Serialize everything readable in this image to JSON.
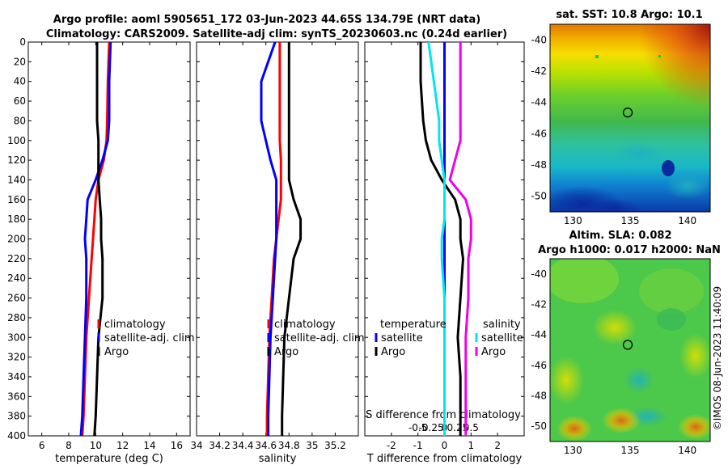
{
  "header": {
    "title_line1": "Argo profile: aoml 5905651_172 03-Jun-2023 44.65S 134.79E (NRT data)",
    "title_line2": "Climatology: CARS2009. Satellite-adj clim: synTS_20230603.nc (0.24d earlier)"
  },
  "map_sst": {
    "title": "sat. SST: 10.8 Argo: 10.1"
  },
  "map_sla": {
    "title_line1": "Altim. SLA: 0.082",
    "title_line2": "Argo h1000: 0.017 h2000: NaN"
  },
  "credit": "©IMOS 08-Jun-2023 11:40:09",
  "colors": {
    "climatology": "#ff0000",
    "satellite": "#0000ff",
    "argo": "#000000",
    "sal_satellite": "#00e5ee",
    "sal_argo": "#ee00ee"
  },
  "chart_data": [
    {
      "type": "line",
      "name": "temperature-panel",
      "xlabel": "temperature (deg C)",
      "xlim": [
        5,
        17
      ],
      "xticks": [
        6,
        8,
        10,
        12,
        14,
        16
      ],
      "ylim": [
        0,
        400
      ],
      "yticks": [
        0,
        20,
        40,
        60,
        80,
        100,
        120,
        140,
        160,
        180,
        200,
        220,
        240,
        260,
        280,
        300,
        320,
        340,
        360,
        380,
        400
      ],
      "depth": [
        0,
        40,
        80,
        100,
        120,
        140,
        160,
        180,
        200,
        220,
        260,
        300,
        340,
        380,
        400
      ],
      "legend": [
        "climatology",
        "satellite-adj. clim",
        "Argo"
      ],
      "series": [
        {
          "name": "climatology",
          "values": [
            11,
            10.9,
            10.85,
            10.8,
            10.6,
            10.2,
            10.0,
            9.9,
            9.8,
            9.7,
            9.5,
            9.3,
            9.2,
            9.1,
            9.0
          ]
        },
        {
          "name": "satellite-adj. clim",
          "values": [
            11.1,
            11.0,
            11.0,
            10.9,
            10.5,
            10.0,
            9.4,
            9.3,
            9.2,
            9.3,
            9.3,
            9.2,
            9.1,
            9.0,
            8.9
          ]
        },
        {
          "name": "Argo",
          "values": [
            10.1,
            10.1,
            10.1,
            10.2,
            10.2,
            10.2,
            10.3,
            10.4,
            10.4,
            10.5,
            10.5,
            10.2,
            10.1,
            10.0,
            9.9
          ]
        }
      ]
    },
    {
      "type": "line",
      "name": "salinity-panel",
      "xlabel": "salinity",
      "xlim": [
        34.0,
        35.4
      ],
      "xticks": [
        34,
        34.2,
        34.4,
        34.6,
        34.8,
        35,
        35.2
      ],
      "ylim": [
        0,
        400
      ],
      "depth": [
        0,
        20,
        40,
        60,
        80,
        100,
        120,
        140,
        160,
        180,
        200,
        220,
        260,
        300,
        340,
        380,
        400
      ],
      "legend": [
        "climatology",
        "satellite-adj. clim",
        "Argo"
      ],
      "series": [
        {
          "name": "climatology",
          "values": [
            34.72,
            34.72,
            34.72,
            34.72,
            34.72,
            34.72,
            34.73,
            34.73,
            34.73,
            34.71,
            34.69,
            34.67,
            34.65,
            34.63,
            34.62,
            34.61,
            34.61
          ]
        },
        {
          "name": "satellite-adj. clim",
          "values": [
            34.68,
            34.62,
            34.56,
            34.56,
            34.56,
            34.6,
            34.64,
            34.69,
            34.69,
            34.69,
            34.69,
            34.68,
            34.66,
            34.64,
            34.63,
            34.62,
            34.62
          ]
        },
        {
          "name": "Argo",
          "values": [
            34.8,
            34.8,
            34.8,
            34.8,
            34.8,
            34.8,
            34.8,
            34.8,
            34.84,
            34.9,
            34.9,
            34.84,
            34.8,
            34.76,
            34.75,
            34.74,
            34.74
          ]
        }
      ]
    },
    {
      "type": "line",
      "name": "difference-panel",
      "xlabel": "T difference from climatology",
      "xlabel_top": "S difference from climatology",
      "xlim": [
        -3,
        3
      ],
      "xticks": [
        -2,
        -1,
        0,
        1,
        2
      ],
      "sal_xticks": [
        "-0.5",
        "-0.25",
        "0",
        "0.25",
        "0.5"
      ],
      "ylim": [
        0,
        400
      ],
      "depth": [
        0,
        40,
        80,
        100,
        120,
        140,
        160,
        180,
        200,
        220,
        260,
        300,
        340,
        380,
        400
      ],
      "legend_temperature_title": "temperature",
      "legend_salinity_title": "salinity",
      "legend_labels": [
        "satellite",
        "Argo",
        "satellite",
        "Argo"
      ],
      "series": [
        {
          "name": "temperature satellite",
          "values": [
            0.0,
            0.0,
            0.0,
            0.0,
            0.0,
            0.0,
            0.0,
            0.0,
            0.0,
            0.0,
            0.0,
            0.0,
            0.0,
            0.0,
            0.0
          ]
        },
        {
          "name": "temperature Argo",
          "values": [
            -0.9,
            -0.9,
            -0.8,
            -0.7,
            -0.5,
            -0.1,
            0.4,
            0.6,
            0.6,
            0.7,
            0.6,
            0.5,
            0.6,
            0.6,
            0.6
          ]
        },
        {
          "name": "salinity satellite",
          "values": [
            -0.3,
            -0.2,
            -0.1,
            -0.1,
            -0.05,
            0.0,
            0.0,
            0.0,
            -0.05,
            -0.05,
            0.0,
            0.0,
            0.0,
            0.0,
            0.0
          ]
        },
        {
          "name": "salinity Argo",
          "values": [
            0.3,
            0.3,
            0.3,
            0.3,
            0.2,
            0.1,
            0.4,
            0.5,
            0.5,
            0.45,
            0.45,
            0.4,
            0.4,
            0.4,
            0.4
          ]
        }
      ]
    },
    {
      "type": "heatmap",
      "name": "sst-map",
      "title": "sat. SST: 10.8 Argo: 10.1",
      "xlim": [
        128,
        142
      ],
      "ylim": [
        -51,
        -39
      ],
      "xticks": [
        130,
        135,
        140
      ],
      "yticks": [
        -40,
        -42,
        -44,
        -46,
        -48,
        -50
      ],
      "argo_position": [
        134.79,
        -44.65
      ]
    },
    {
      "type": "heatmap",
      "name": "sla-map",
      "title": "Altim. SLA: 0.082",
      "xlim": [
        128,
        142
      ],
      "ylim": [
        -51,
        -39
      ],
      "xticks": [
        130,
        135,
        140
      ],
      "yticks": [
        -40,
        -42,
        -44,
        -46,
        -48,
        -50
      ],
      "argo_position": [
        134.79,
        -44.65
      ]
    }
  ]
}
